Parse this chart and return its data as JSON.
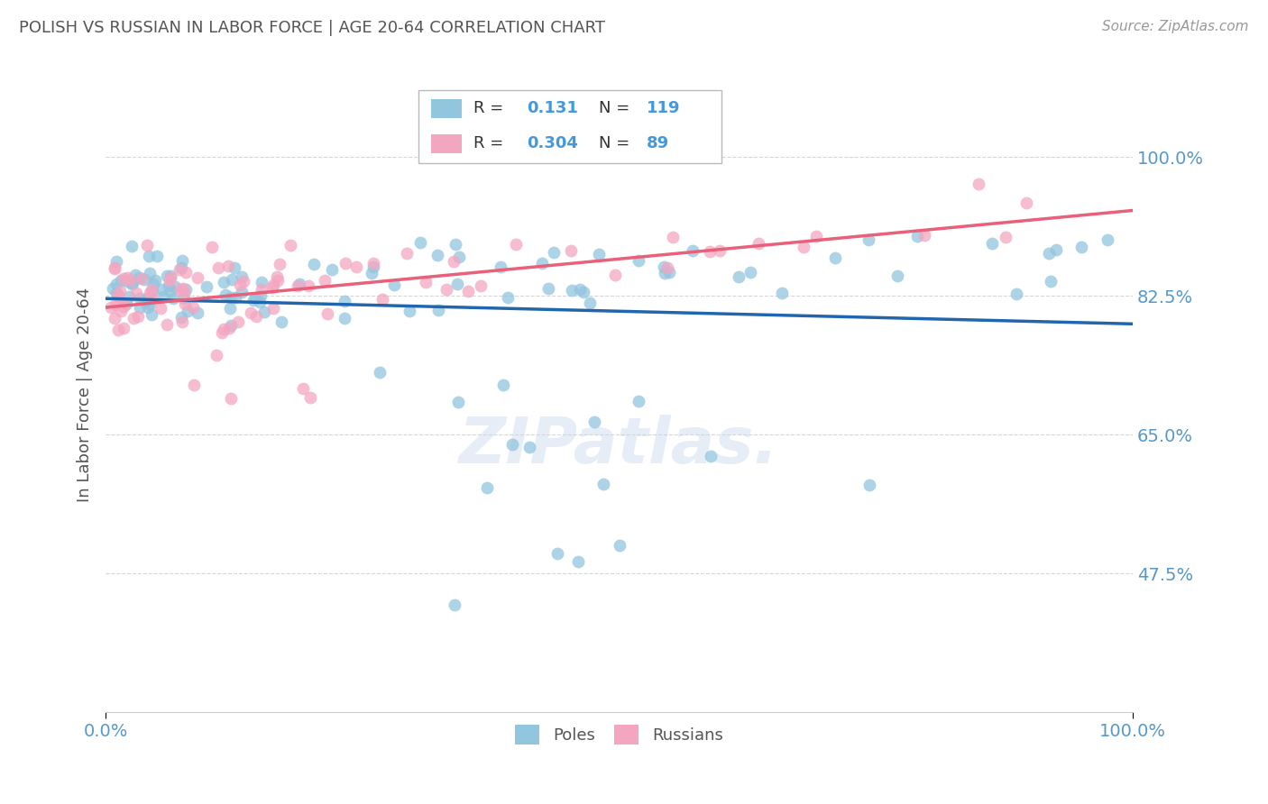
{
  "title": "POLISH VS RUSSIAN IN LABOR FORCE | AGE 20-64 CORRELATION CHART",
  "source": "Source: ZipAtlas.com",
  "ylabel": "In Labor Force | Age 20-64",
  "watermark": "ZIPatlas.",
  "poles_R": 0.131,
  "poles_N": 119,
  "russians_R": 0.304,
  "russians_N": 89,
  "poles_color": "#92c5de",
  "russians_color": "#f4a6c0",
  "poles_line_color": "#2166ac",
  "russians_line_color": "#e8607a",
  "bg_color": "#ffffff",
  "grid_color": "#cccccc",
  "title_color": "#555555",
  "axis_label_color": "#555555",
  "tick_color": "#5599cc",
  "yticks": [
    0.475,
    0.65,
    0.825,
    1.0
  ],
  "ytick_labels": [
    "47.5%",
    "65.0%",
    "82.5%",
    "100.0%"
  ],
  "xticks": [
    0.0,
    1.0
  ],
  "xtick_labels": [
    "0.0%",
    "100.0%"
  ],
  "ylim": [
    0.3,
    1.1
  ],
  "xlim": [
    0.0,
    1.0
  ],
  "figsize": [
    14.06,
    8.92
  ],
  "dpi": 100,
  "legend_R_N_color": "#4499dd",
  "legend_label_color": "#555555"
}
